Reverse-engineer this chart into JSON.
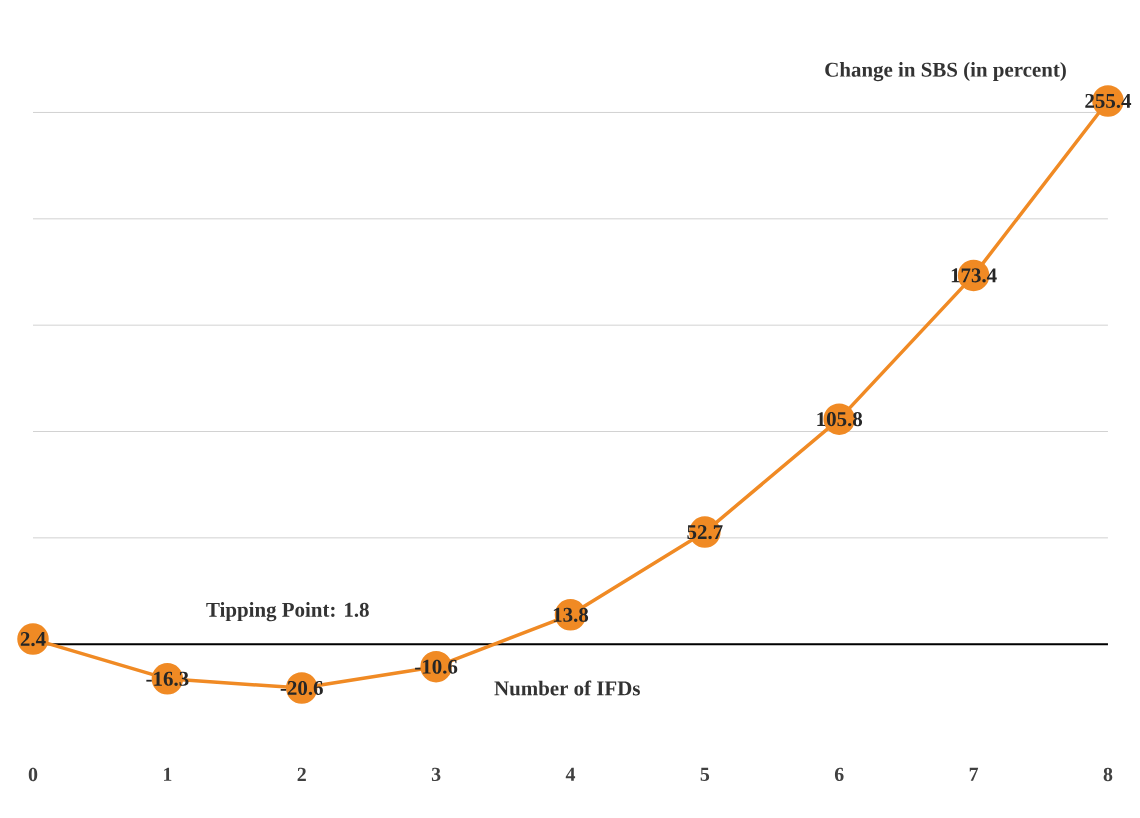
{
  "chart_data": {
    "type": "line",
    "ylabel": "Change in SBS (in percent)",
    "xlabel": "Number of IFDs",
    "annotations": [
      "Tipping Point: 1.8"
    ],
    "categories": [
      "0",
      "1",
      "2",
      "3",
      "4",
      "5",
      "6",
      "7",
      "8"
    ],
    "values": [
      2.4,
      -16.3,
      -20.6,
      -10.6,
      13.8,
      52.7,
      105.8,
      173.4,
      255.4
    ],
    "color": "#f08a24",
    "marker": "circle",
    "line_style": "solid",
    "data_labels": true,
    "grid": "y",
    "tick_labels": "x"
  }
}
